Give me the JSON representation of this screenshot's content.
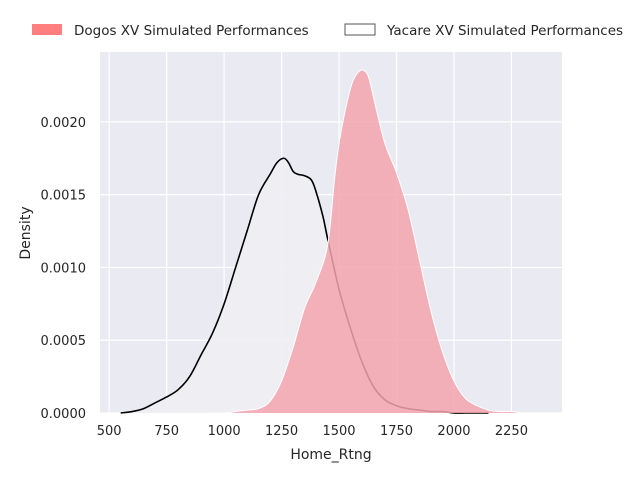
{
  "chart_data": {
    "type": "area",
    "title": "",
    "xlabel": "Home_Rtng",
    "ylabel": "Density",
    "xlim": [
      460,
      2470
    ],
    "ylim": [
      0,
      0.00248
    ],
    "x_ticks": [
      500,
      750,
      1000,
      1250,
      1500,
      1750,
      2000,
      2250
    ],
    "x_tick_labels": [
      "500",
      "750",
      "1000",
      "1250",
      "1500",
      "1750",
      "2000",
      "2250"
    ],
    "y_ticks": [
      0,
      0.0005,
      0.001,
      0.0015,
      0.002
    ],
    "y_tick_labels": [
      "0.0000",
      "0.0005",
      "0.0010",
      "0.0015",
      "0.0020"
    ],
    "grid": true,
    "legend_position": "top (above plot)",
    "series": [
      {
        "name": "Dogos XV Simulated Performances",
        "color": "#f4a4ad",
        "edge_color": "#ffffff",
        "x": [
          930,
          1000,
          1050,
          1100,
          1150,
          1200,
          1250,
          1300,
          1350,
          1400,
          1450,
          1480,
          1500,
          1530,
          1560,
          1590,
          1610,
          1630,
          1660,
          1700,
          1750,
          1800,
          1850,
          1900,
          1950,
          2000,
          2050,
          2100,
          2150,
          2200,
          2250,
          2300,
          2350,
          2400
        ],
        "y": [
          0.0,
          0.0,
          1e-05,
          2e-05,
          3e-05,
          8e-05,
          0.00022,
          0.00045,
          0.00072,
          0.0009,
          0.00115,
          0.0016,
          0.00185,
          0.0021,
          0.00228,
          0.00235,
          0.00235,
          0.0023,
          0.0021,
          0.00185,
          0.00165,
          0.0014,
          0.00105,
          0.0007,
          0.00042,
          0.00022,
          0.0001,
          5e-05,
          2e-05,
          1e-05,
          1e-05,
          0.0,
          0.0,
          0.0
        ]
      },
      {
        "name": "Yacare XV Simulated Performances",
        "color": "#f0eef3",
        "edge_color": "#000000",
        "x": [
          550,
          600,
          650,
          700,
          750,
          800,
          850,
          900,
          950,
          1000,
          1050,
          1100,
          1150,
          1200,
          1230,
          1260,
          1280,
          1300,
          1320,
          1350,
          1380,
          1400,
          1430,
          1450,
          1500,
          1550,
          1600,
          1650,
          1700,
          1750,
          1800,
          1850,
          1900,
          1950,
          2000,
          2050,
          2100,
          2150
        ],
        "y": [
          0.0,
          1e-05,
          3e-05,
          7e-05,
          0.00011,
          0.00016,
          0.00025,
          0.0004,
          0.00055,
          0.00075,
          0.001,
          0.00125,
          0.0015,
          0.00164,
          0.00172,
          0.00175,
          0.00172,
          0.00166,
          0.00164,
          0.00163,
          0.0016,
          0.00152,
          0.00135,
          0.0012,
          0.00085,
          0.00058,
          0.00035,
          0.00018,
          9e-05,
          5e-05,
          3e-05,
          2e-05,
          1e-05,
          1e-05,
          0.0,
          0.0,
          0.0,
          0.0
        ]
      }
    ]
  }
}
